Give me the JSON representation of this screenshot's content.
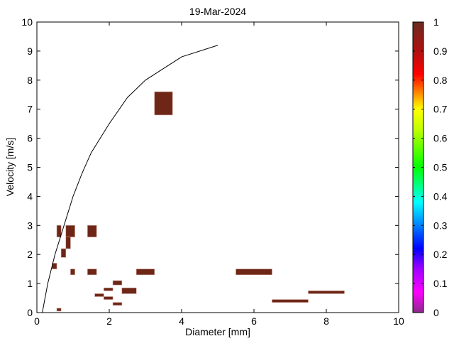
{
  "chart_data": {
    "type": "heatmap",
    "title": "19-Mar-2024",
    "xlabel": "Diameter [mm]",
    "ylabel": "Velocity [m/s]",
    "xlim": [
      0,
      10
    ],
    "ylim": [
      0,
      10
    ],
    "xticks": [
      "0",
      "2",
      "4",
      "6",
      "8",
      "10"
    ],
    "yticks": [
      "0",
      "1",
      "2",
      "3",
      "4",
      "5",
      "6",
      "7",
      "8",
      "9",
      "10"
    ],
    "grid": false,
    "cells": [
      {
        "x": [
          0.55,
          0.67
        ],
        "y": [
          2.6,
          3.0
        ],
        "value": 1
      },
      {
        "x": [
          0.8,
          1.05
        ],
        "y": [
          2.6,
          3.0
        ],
        "value": 1
      },
      {
        "x": [
          0.8,
          0.93
        ],
        "y": [
          2.2,
          2.6
        ],
        "value": 1
      },
      {
        "x": [
          0.67,
          0.8
        ],
        "y": [
          1.9,
          2.2
        ],
        "value": 1
      },
      {
        "x": [
          1.4,
          1.65
        ],
        "y": [
          2.6,
          3.0
        ],
        "value": 1
      },
      {
        "x": [
          0.42,
          0.55
        ],
        "y": [
          1.5,
          1.7
        ],
        "value": 1
      },
      {
        "x": [
          0.93,
          1.05
        ],
        "y": [
          1.3,
          1.5
        ],
        "value": 1
      },
      {
        "x": [
          1.4,
          1.65
        ],
        "y": [
          1.3,
          1.5
        ],
        "value": 1
      },
      {
        "x": [
          2.75,
          3.25
        ],
        "y": [
          1.3,
          1.5
        ],
        "value": 1
      },
      {
        "x": [
          2.1,
          2.35
        ],
        "y": [
          0.95,
          1.1
        ],
        "value": 1
      },
      {
        "x": [
          1.85,
          2.1
        ],
        "y": [
          0.75,
          0.85
        ],
        "value": 1
      },
      {
        "x": [
          2.35,
          2.75
        ],
        "y": [
          0.65,
          0.85
        ],
        "value": 1
      },
      {
        "x": [
          1.6,
          1.85
        ],
        "y": [
          0.55,
          0.65
        ],
        "value": 1
      },
      {
        "x": [
          1.85,
          2.1
        ],
        "y": [
          0.45,
          0.55
        ],
        "value": 1
      },
      {
        "x": [
          2.1,
          2.35
        ],
        "y": [
          0.25,
          0.35
        ],
        "value": 1
      },
      {
        "x": [
          0.55,
          0.67
        ],
        "y": [
          0.05,
          0.15
        ],
        "value": 1
      },
      {
        "x": [
          3.25,
          3.75
        ],
        "y": [
          6.8,
          7.6
        ],
        "value": 1
      },
      {
        "x": [
          5.5,
          6.5
        ],
        "y": [
          1.3,
          1.5
        ],
        "value": 1
      },
      {
        "x": [
          7.5,
          8.5
        ],
        "y": [
          0.65,
          0.75
        ],
        "value": 1
      },
      {
        "x": [
          6.5,
          7.5
        ],
        "y": [
          0.35,
          0.45
        ],
        "value": 1
      }
    ],
    "reference_curve": {
      "x": [
        0.15,
        0.3,
        0.5,
        0.75,
        1.0,
        1.25,
        1.5,
        2.0,
        2.5,
        3.0,
        3.5,
        4.0,
        5.0
      ],
      "y": [
        0,
        1.0,
        2.0,
        3.0,
        4.0,
        4.8,
        5.5,
        6.5,
        7.4,
        8.0,
        8.4,
        8.8,
        9.2
      ]
    },
    "colorbar": {
      "range": [
        0,
        1
      ],
      "ticks": [
        "0",
        "0.1",
        "0.2",
        "0.3",
        "0.4",
        "0.5",
        "0.6",
        "0.7",
        "0.8",
        "0.9",
        "1"
      ],
      "placement": "right"
    },
    "cell_color": "#6e2616"
  }
}
